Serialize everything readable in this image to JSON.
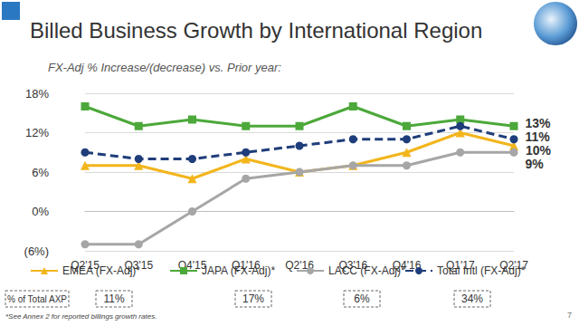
{
  "chart_data": {
    "type": "line",
    "title": "Billed Business Growth by International Region",
    "subtitle": "FX-Adj % Increase/(decrease) vs. Prior year:",
    "categories": [
      "Q2'15",
      "Q3'15",
      "Q4'15",
      "Q1'16",
      "Q2'16",
      "Q3'16",
      "Q4'16",
      "Q1'17",
      "Q2'17"
    ],
    "series": [
      {
        "name": "EMEA (FX-Adj)*",
        "color": "#F2B51C",
        "marker": "triangle",
        "line_style": "solid",
        "values": [
          7,
          7,
          5,
          8,
          6,
          7,
          9,
          12,
          10
        ],
        "value_labels": [
          null,
          null,
          null,
          null,
          null,
          null,
          null,
          null,
          "10%"
        ],
        "share": "11%"
      },
      {
        "name": "JAPA (FX-Adj)*",
        "color": "#4CA83A",
        "marker": "square",
        "line_style": "solid",
        "values": [
          16,
          13,
          14,
          13,
          13,
          16,
          13,
          14,
          13
        ],
        "value_labels": [
          null,
          null,
          null,
          null,
          null,
          null,
          null,
          null,
          "13%"
        ],
        "share": "17%"
      },
      {
        "name": "LACC (FX-Adj)*",
        "color": "#A6A6A6",
        "marker": "circle",
        "line_style": "solid",
        "values": [
          -5,
          -5,
          0,
          5,
          6,
          7,
          7,
          9,
          9
        ],
        "value_labels": [
          null,
          null,
          null,
          null,
          null,
          null,
          null,
          null,
          "9%"
        ],
        "share": "6%"
      },
      {
        "name": "Total Intl (FX-Adj)*",
        "color": "#1F3D7A",
        "marker": "circle",
        "line_style": "dashed",
        "values": [
          9,
          8,
          8,
          9,
          10,
          11,
          11,
          13,
          11
        ],
        "value_labels": [
          null,
          null,
          null,
          null,
          null,
          null,
          null,
          null,
          "11%"
        ],
        "share": "34%"
      }
    ],
    "ylim": [
      -6,
      18
    ],
    "yticks": [
      {
        "value": -6,
        "label": "(6%)"
      },
      {
        "value": 0,
        "label": "0%"
      },
      {
        "value": 6,
        "label": "6%"
      },
      {
        "value": 12,
        "label": "12%"
      },
      {
        "value": 18,
        "label": "18%"
      }
    ],
    "grid": true,
    "legend": "bottom",
    "data_labels": true,
    "share_label": "% of Total AXP",
    "footnote": "*See Annex 2 for reported billings growth rates.",
    "page": "7"
  }
}
